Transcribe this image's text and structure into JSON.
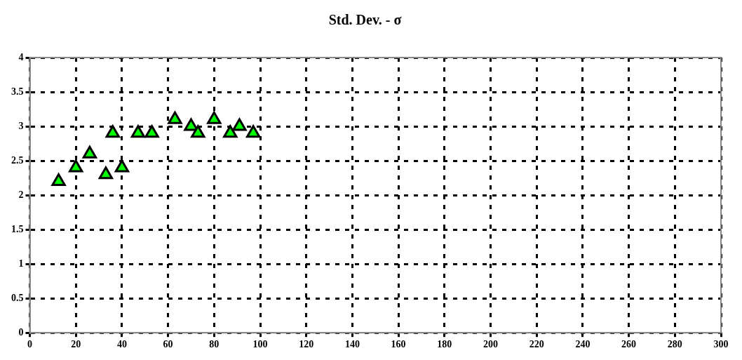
{
  "chart_data": {
    "type": "scatter",
    "title": "Std. Dev. - σ",
    "x": [
      12.5,
      20,
      26,
      33,
      36,
      40,
      47,
      53,
      63,
      70,
      73,
      80,
      87,
      91,
      97
    ],
    "series": [
      {
        "color": "#00ff00",
        "values": [
          2.2,
          2.4,
          2.6,
          2.3,
          2.9,
          2.4,
          2.9,
          2.9,
          3.1,
          3.0,
          2.9,
          3.1,
          2.9,
          3.0,
          2.9
        ]
      }
    ],
    "xlim": [
      0,
      300
    ],
    "xticks": [
      0,
      20,
      40,
      60,
      80,
      100,
      120,
      140,
      160,
      180,
      200,
      220,
      240,
      260,
      280,
      300
    ],
    "ylim": [
      0,
      4
    ],
    "yticks": [
      0,
      0.5,
      1,
      1.5,
      2,
      2.5,
      3,
      3.5,
      4
    ],
    "grid": true,
    "line_style": "dashed",
    "marker": "triangle",
    "legend": false
  }
}
